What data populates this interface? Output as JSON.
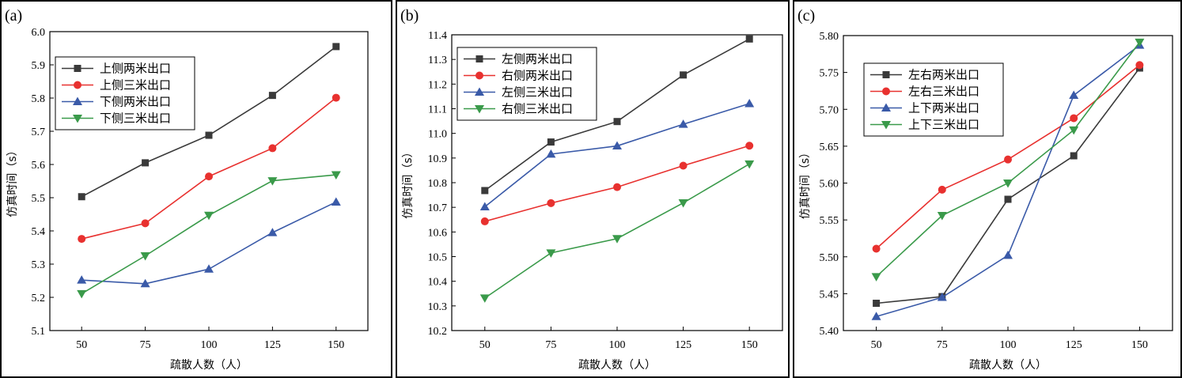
{
  "chart_data": [
    {
      "type": "line",
      "panel_label": "(a)",
      "xlabel": "疏散人数（人）",
      "ylabel": "仿真时间（s）",
      "x": [
        50,
        75,
        100,
        125,
        150
      ],
      "xticks": [
        "50",
        "75",
        "100",
        "125",
        "150"
      ],
      "ylim": [
        5.1,
        6.0
      ],
      "yticks": [
        "5.1",
        "5.2",
        "5.3",
        "5.4",
        "5.5",
        "5.6",
        "5.7",
        "5.8",
        "5.9",
        "6.0"
      ],
      "legend_position": "upper-left",
      "series": [
        {
          "name": "上侧两米出口",
          "color": "#3a3a3a",
          "marker": "square",
          "values": [
            5.503,
            5.605,
            5.688,
            5.808,
            5.955
          ]
        },
        {
          "name": "上侧三米出口",
          "color": "#e8312f",
          "marker": "circle",
          "values": [
            5.376,
            5.423,
            5.564,
            5.649,
            5.801
          ]
        },
        {
          "name": "下侧两米出口",
          "color": "#3a5aa8",
          "marker": "triangle-up",
          "values": [
            5.252,
            5.241,
            5.285,
            5.395,
            5.487
          ]
        },
        {
          "name": "下侧三米出口",
          "color": "#3a9a4a",
          "marker": "triangle-down",
          "values": [
            5.211,
            5.325,
            5.447,
            5.551,
            5.569
          ]
        }
      ]
    },
    {
      "type": "line",
      "panel_label": "(b)",
      "xlabel": "疏散人数（人）",
      "ylabel": "仿真时间（s）",
      "x": [
        50,
        75,
        100,
        125,
        150
      ],
      "xticks": [
        "50",
        "75",
        "100",
        "125",
        "150"
      ],
      "ylim": [
        10.2,
        11.4
      ],
      "yticks": [
        "10.2",
        "10.3",
        "10.4",
        "10.5",
        "10.6",
        "10.7",
        "10.8",
        "10.9",
        "11.0",
        "11.1",
        "11.2",
        "11.3",
        "11.4"
      ],
      "legend_position": "upper-left",
      "series": [
        {
          "name": "左侧两米出口",
          "color": "#3a3a3a",
          "marker": "square",
          "values": [
            10.768,
            10.965,
            11.048,
            11.237,
            11.383
          ]
        },
        {
          "name": "右侧两米出口",
          "color": "#e8312f",
          "marker": "circle",
          "values": [
            10.643,
            10.717,
            10.782,
            10.869,
            10.95
          ]
        },
        {
          "name": "左侧三米出口",
          "color": "#3a5aa8",
          "marker": "triangle-up",
          "values": [
            10.702,
            10.916,
            10.949,
            11.037,
            11.121
          ]
        },
        {
          "name": "右侧三米出口",
          "color": "#3a9a4a",
          "marker": "triangle-down",
          "values": [
            10.332,
            10.515,
            10.573,
            10.718,
            10.876
          ]
        }
      ]
    },
    {
      "type": "line",
      "panel_label": "(c)",
      "xlabel": "疏散人数（人）",
      "ylabel": "仿真时间（s）",
      "x": [
        50,
        75,
        100,
        125,
        150
      ],
      "xticks": [
        "50",
        "75",
        "100",
        "125",
        "150"
      ],
      "ylim": [
        5.4,
        5.8
      ],
      "yticks": [
        "5.40",
        "5.45",
        "5.50",
        "5.55",
        "5.60",
        "5.65",
        "5.70",
        "5.75",
        "5.80"
      ],
      "legend_position": "upper-left",
      "series": [
        {
          "name": "左右两米出口",
          "color": "#3a3a3a",
          "marker": "square",
          "values": [
            5.437,
            5.446,
            5.578,
            5.637,
            5.756
          ]
        },
        {
          "name": "左右三米出口",
          "color": "#e8312f",
          "marker": "circle",
          "values": [
            5.511,
            5.591,
            5.632,
            5.688,
            5.76
          ]
        },
        {
          "name": "上下两米出口",
          "color": "#3a5aa8",
          "marker": "triangle-up",
          "values": [
            5.419,
            5.445,
            5.502,
            5.719,
            5.787
          ]
        },
        {
          "name": "上下三米出口",
          "color": "#3a9a4a",
          "marker": "triangle-down",
          "values": [
            5.473,
            5.556,
            5.6,
            5.672,
            5.791
          ]
        }
      ]
    }
  ]
}
